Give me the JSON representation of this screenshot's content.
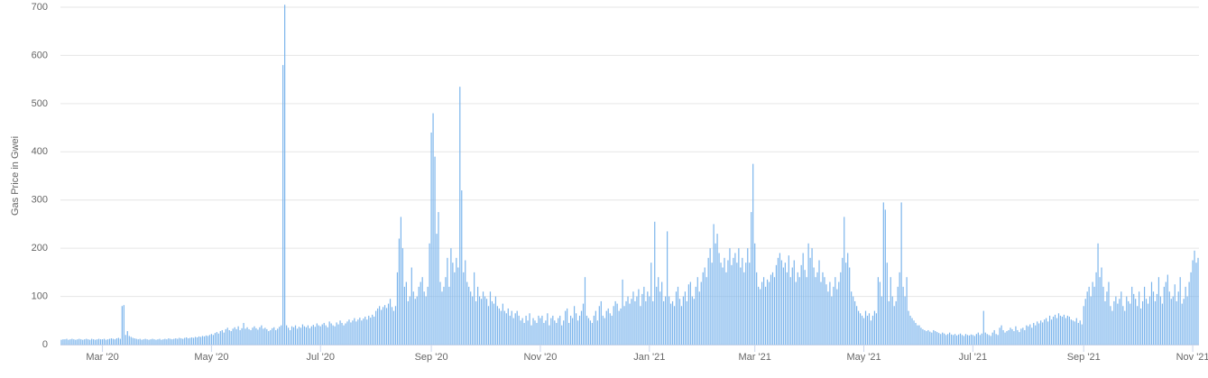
{
  "chart_data": {
    "type": "bar",
    "y_label": "Gas Price in Gwei",
    "color": "#7cb5ec",
    "grid": true,
    "ylim": [
      0,
      700
    ],
    "yticks": [
      0,
      100,
      200,
      300,
      400,
      500,
      600,
      700
    ],
    "categories": [
      null,
      null,
      null,
      null,
      null,
      null,
      null,
      null,
      null,
      null,
      null,
      null,
      null,
      null,
      null,
      null,
      null,
      null,
      null,
      null,
      null,
      null,
      null,
      "Mar '20",
      null,
      null,
      null,
      null,
      null,
      null,
      null,
      null,
      null,
      null,
      null,
      null,
      null,
      null,
      null,
      null,
      null,
      null,
      null,
      null,
      null,
      null,
      null,
      null,
      null,
      null,
      null,
      null,
      null,
      null,
      null,
      null,
      null,
      null,
      null,
      null,
      null,
      null,
      null,
      null,
      null,
      null,
      null,
      null,
      null,
      null,
      null,
      null,
      null,
      null,
      null,
      null,
      null,
      null,
      null,
      null,
      null,
      null,
      null,
      null,
      "May '20",
      null,
      null,
      null,
      null,
      null,
      null,
      null,
      null,
      null,
      null,
      null,
      null,
      null,
      null,
      null,
      null,
      null,
      null,
      null,
      null,
      null,
      null,
      null,
      null,
      null,
      null,
      null,
      null,
      null,
      null,
      null,
      null,
      null,
      null,
      null,
      null,
      null,
      null,
      null,
      null,
      null,
      null,
      null,
      null,
      null,
      null,
      null,
      null,
      null,
      null,
      null,
      null,
      null,
      null,
      null,
      null,
      null,
      null,
      null,
      null,
      "Jul '20",
      null,
      null,
      null,
      null,
      null,
      null,
      null,
      null,
      null,
      null,
      null,
      null,
      null,
      null,
      null,
      null,
      null,
      null,
      null,
      null,
      null,
      null,
      null,
      null,
      null,
      null,
      null,
      null,
      null,
      null,
      null,
      null,
      null,
      null,
      null,
      null,
      null,
      null,
      null,
      null,
      null,
      null,
      null,
      null,
      null,
      null,
      null,
      null,
      null,
      null,
      null,
      null,
      null,
      null,
      null,
      null,
      null,
      null,
      null,
      null,
      null,
      "Sep '20",
      null,
      null,
      null,
      null,
      null,
      null,
      null,
      null,
      null,
      null,
      null,
      null,
      null,
      null,
      null,
      null,
      null,
      null,
      null,
      null,
      null,
      null,
      null,
      null,
      null,
      null,
      null,
      null,
      null,
      null,
      null,
      null,
      null,
      null,
      null,
      null,
      null,
      null,
      null,
      null,
      null,
      null,
      null,
      null,
      null,
      null,
      null,
      null,
      null,
      null,
      null,
      null,
      null,
      null,
      null,
      null,
      null,
      null,
      null,
      null,
      "Nov '20",
      null,
      null,
      null,
      null,
      null,
      null,
      null,
      null,
      null,
      null,
      null,
      null,
      null,
      null,
      null,
      null,
      null,
      null,
      null,
      null,
      null,
      null,
      null,
      null,
      null,
      null,
      null,
      null,
      null,
      null,
      null,
      null,
      null,
      null,
      null,
      null,
      null,
      null,
      null,
      null,
      null,
      null,
      null,
      null,
      null,
      null,
      null,
      null,
      null,
      null,
      null,
      null,
      null,
      null,
      null,
      null,
      null,
      null,
      null,
      null,
      "Jan '21",
      null,
      null,
      null,
      null,
      null,
      null,
      null,
      null,
      null,
      null,
      null,
      null,
      null,
      null,
      null,
      null,
      null,
      null,
      null,
      null,
      null,
      null,
      null,
      null,
      null,
      null,
      null,
      null,
      null,
      null,
      null,
      null,
      null,
      null,
      null,
      null,
      null,
      null,
      null,
      null,
      null,
      null,
      null,
      null,
      null,
      null,
      null,
      null,
      null,
      null,
      null,
      null,
      null,
      null,
      null,
      null,
      null,
      null,
      "Mar '21",
      null,
      null,
      null,
      null,
      null,
      null,
      null,
      null,
      null,
      null,
      null,
      null,
      null,
      null,
      null,
      null,
      null,
      null,
      null,
      null,
      null,
      null,
      null,
      null,
      null,
      null,
      null,
      null,
      null,
      null,
      null,
      null,
      null,
      null,
      null,
      null,
      null,
      null,
      null,
      null,
      null,
      null,
      null,
      null,
      null,
      null,
      null,
      null,
      null,
      null,
      null,
      null,
      null,
      null,
      null,
      null,
      null,
      null,
      null,
      null,
      "May '21",
      null,
      null,
      null,
      null,
      null,
      null,
      null,
      null,
      null,
      null,
      null,
      null,
      null,
      null,
      null,
      null,
      null,
      null,
      null,
      null,
      null,
      null,
      null,
      null,
      null,
      null,
      null,
      null,
      null,
      null,
      null,
      null,
      null,
      null,
      null,
      null,
      null,
      null,
      null,
      null,
      null,
      null,
      null,
      null,
      null,
      null,
      null,
      null,
      null,
      null,
      null,
      null,
      null,
      null,
      null,
      null,
      null,
      null,
      null,
      null,
      "Jul '21",
      null,
      null,
      null,
      null,
      null,
      null,
      null,
      null,
      null,
      null,
      null,
      null,
      null,
      null,
      null,
      null,
      null,
      null,
      null,
      null,
      null,
      null,
      null,
      null,
      null,
      null,
      null,
      null,
      null,
      null,
      null,
      null,
      null,
      null,
      null,
      null,
      null,
      null,
      null,
      null,
      null,
      null,
      null,
      null,
      null,
      null,
      null,
      null,
      null,
      null,
      null,
      null,
      null,
      null,
      null,
      null,
      null,
      null,
      null,
      null,
      null,
      "Sep '21",
      null,
      null,
      null,
      null,
      null,
      null,
      null,
      null,
      null,
      null,
      null,
      null,
      null,
      null,
      null,
      null,
      null,
      null,
      null,
      null,
      null,
      null,
      null,
      null,
      null,
      null,
      null,
      null,
      null,
      null,
      null,
      null,
      null,
      null,
      null,
      null,
      null,
      null,
      null,
      null,
      null,
      null,
      null,
      null,
      null,
      null,
      null,
      null,
      null,
      null,
      null,
      null,
      null,
      null,
      null,
      null,
      null,
      null,
      null,
      null,
      "Nov '21",
      null,
      null,
      null
    ],
    "values": [
      10,
      11,
      11,
      12,
      10,
      11,
      12,
      11,
      10,
      11,
      12,
      11,
      10,
      11,
      12,
      11,
      10,
      12,
      11,
      10,
      11,
      12,
      11,
      11,
      12,
      10,
      11,
      12,
      13,
      12,
      11,
      13,
      14,
      12,
      80,
      82,
      20,
      28,
      18,
      16,
      14,
      13,
      12,
      11,
      12,
      10,
      11,
      12,
      11,
      10,
      11,
      12,
      11,
      10,
      11,
      12,
      10,
      11,
      12,
      11,
      13,
      12,
      11,
      12,
      13,
      12,
      14,
      13,
      12,
      14,
      15,
      13,
      14,
      15,
      14,
      16,
      15,
      17,
      16,
      18,
      17,
      19,
      18,
      20,
      22,
      20,
      24,
      26,
      23,
      28,
      30,
      25,
      32,
      35,
      30,
      28,
      33,
      36,
      32,
      38,
      30,
      34,
      45,
      33,
      36,
      32,
      30,
      35,
      38,
      34,
      31,
      36,
      40,
      33,
      35,
      32,
      28,
      30,
      34,
      36,
      30,
      33,
      37,
      40,
      580,
      705,
      40,
      35,
      30,
      38,
      36,
      40,
      33,
      37,
      35,
      42,
      38,
      36,
      40,
      34,
      38,
      41,
      37,
      44,
      40,
      38,
      42,
      45,
      40,
      36,
      48,
      44,
      40,
      38,
      46,
      42,
      50,
      45,
      40,
      44,
      48,
      52,
      46,
      50,
      55,
      48,
      52,
      56,
      50,
      54,
      58,
      52,
      60,
      56,
      62,
      58,
      70,
      75,
      80,
      72,
      78,
      82,
      76,
      85,
      95,
      78,
      70,
      80,
      150,
      220,
      265,
      200,
      120,
      130,
      90,
      100,
      160,
      110,
      95,
      100,
      120,
      130,
      140,
      110,
      100,
      120,
      210,
      440,
      480,
      390,
      230,
      275,
      130,
      110,
      120,
      140,
      180,
      120,
      200,
      170,
      150,
      180,
      160,
      535,
      320,
      150,
      175,
      130,
      120,
      110,
      100,
      150,
      90,
      120,
      100,
      95,
      110,
      100,
      95,
      80,
      110,
      90,
      85,
      100,
      80,
      75,
      70,
      85,
      70,
      65,
      75,
      60,
      70,
      55,
      65,
      70,
      60,
      50,
      55,
      45,
      60,
      50,
      65,
      40,
      55,
      50,
      45,
      60,
      55,
      60,
      45,
      50,
      65,
      40,
      55,
      60,
      50,
      45,
      55,
      60,
      40,
      50,
      70,
      75,
      45,
      60,
      55,
      80,
      65,
      50,
      60,
      70,
      85,
      140,
      60,
      55,
      50,
      45,
      60,
      70,
      50,
      80,
      90,
      60,
      55,
      70,
      75,
      65,
      60,
      80,
      90,
      85,
      70,
      75,
      135,
      80,
      90,
      100,
      85,
      95,
      110,
      90,
      100,
      115,
      80,
      105,
      120,
      90,
      110,
      100,
      170,
      90,
      255,
      120,
      140,
      110,
      130,
      90,
      100,
      235,
      100,
      85,
      90,
      80,
      110,
      120,
      95,
      80,
      100,
      110,
      90,
      125,
      130,
      100,
      95,
      120,
      140,
      110,
      130,
      150,
      160,
      140,
      180,
      200,
      170,
      250,
      210,
      230,
      190,
      170,
      160,
      180,
      150,
      175,
      200,
      165,
      180,
      190,
      170,
      200,
      160,
      180,
      150,
      170,
      200,
      170,
      275,
      375,
      210,
      150,
      120,
      115,
      130,
      140,
      120,
      135,
      130,
      145,
      150,
      140,
      165,
      180,
      190,
      175,
      160,
      170,
      150,
      185,
      140,
      160,
      175,
      130,
      150,
      140,
      165,
      190,
      155,
      140,
      210,
      180,
      200,
      160,
      140,
      150,
      175,
      130,
      150,
      140,
      125,
      110,
      130,
      100,
      120,
      140,
      115,
      130,
      150,
      180,
      265,
      170,
      190,
      160,
      110,
      100,
      90,
      80,
      70,
      65,
      60,
      55,
      70,
      60,
      65,
      50,
      60,
      70,
      65,
      140,
      130,
      100,
      295,
      280,
      170,
      90,
      140,
      100,
      80,
      90,
      120,
      150,
      295,
      120,
      100,
      140,
      70,
      60,
      55,
      50,
      45,
      40,
      40,
      35,
      32,
      30,
      28,
      30,
      27,
      25,
      30,
      28,
      26,
      24,
      22,
      25,
      23,
      20,
      22,
      25,
      21,
      20,
      22,
      19,
      21,
      23,
      20,
      18,
      22,
      20,
      19,
      21,
      20,
      18,
      22,
      25,
      20,
      23,
      70,
      25,
      22,
      20,
      18,
      25,
      30,
      22,
      20,
      35,
      40,
      30,
      25,
      28,
      30,
      35,
      32,
      28,
      38,
      30,
      26,
      33,
      35,
      30,
      40,
      38,
      42,
      35,
      45,
      40,
      48,
      44,
      50,
      46,
      52,
      55,
      48,
      60,
      52,
      58,
      62,
      55,
      65,
      60,
      58,
      62,
      55,
      60,
      58,
      52,
      50,
      48,
      55,
      45,
      50,
      42,
      80,
      95,
      110,
      120,
      100,
      130,
      120,
      150,
      210,
      140,
      160,
      120,
      90,
      110,
      130,
      80,
      70,
      90,
      100,
      85,
      95,
      110,
      80,
      70,
      100,
      90,
      85,
      120,
      105,
      95,
      80,
      110,
      75,
      90,
      120,
      95,
      85,
      100,
      130,
      110,
      90,
      105,
      140,
      100,
      85,
      120,
      130,
      145,
      110,
      95,
      100,
      125,
      90,
      110,
      140,
      85,
      95,
      120,
      100,
      130,
      150,
      175,
      195,
      170,
      180
    ]
  }
}
